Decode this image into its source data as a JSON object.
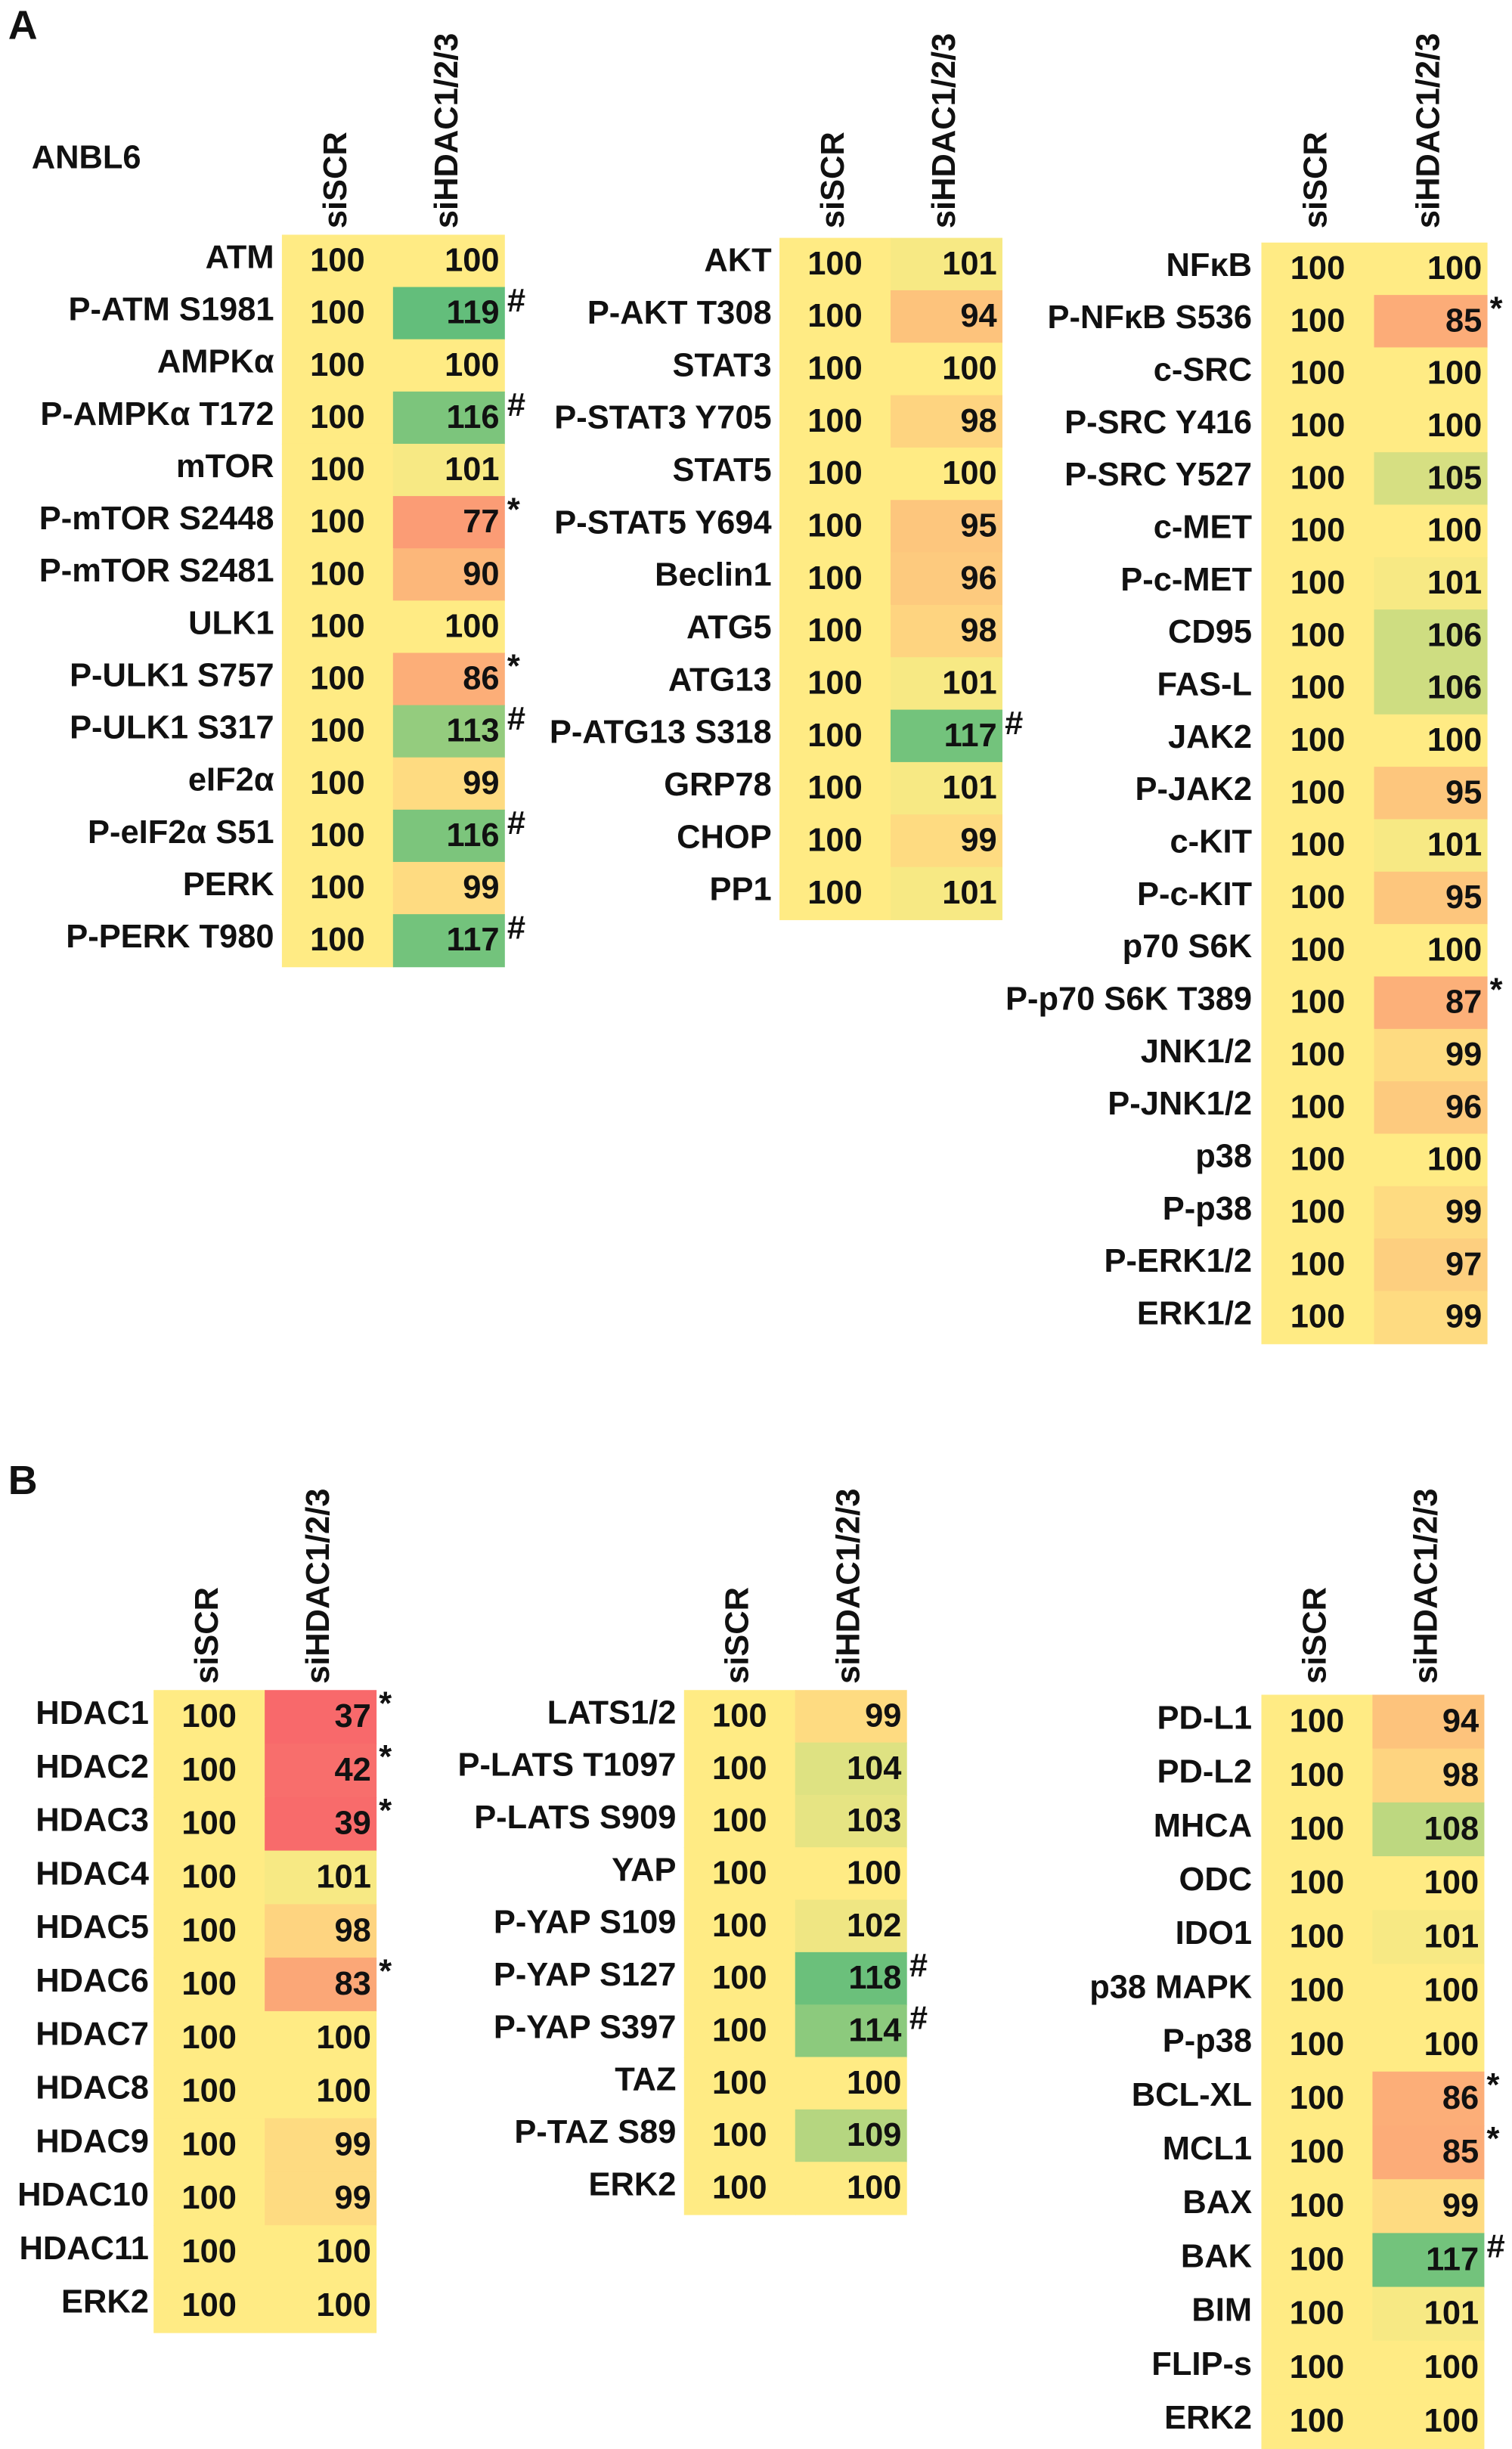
{
  "panel_labels": [
    "A",
    "B"
  ],
  "cell_line": "ANBL6",
  "chart_data": [
    {
      "type": "heatmap",
      "columns": [
        "siSCR",
        "siHDAC1/2/3"
      ],
      "colors": [
        "#f8696b",
        "#ffeb84",
        "#63be7b"
      ],
      "rows": [
        "ATM",
        "P-ATM S1981",
        "AMPKα",
        "P-AMPKα T172",
        "mTOR",
        "P-mTOR S2448",
        "P-mTOR S2481",
        "ULK1",
        "P-ULK1 S757",
        "P-ULK1 S317",
        "eIF2α",
        "P-eIF2α S51",
        "PERK",
        "P-PERK T980"
      ],
      "values": [
        [
          100,
          100
        ],
        [
          100,
          119
        ],
        [
          100,
          100
        ],
        [
          100,
          116
        ],
        [
          100,
          101
        ],
        [
          100,
          77
        ],
        [
          100,
          90
        ],
        [
          100,
          100
        ],
        [
          100,
          86
        ],
        [
          100,
          113
        ],
        [
          100,
          99
        ],
        [
          100,
          116
        ],
        [
          100,
          99
        ],
        [
          100,
          117
        ]
      ],
      "annotations": [
        null,
        "#",
        null,
        "#",
        null,
        "*",
        null,
        null,
        "*",
        "#",
        null,
        "#",
        null,
        "#"
      ]
    },
    {
      "type": "heatmap",
      "columns": [
        "siSCR",
        "siHDAC1/2/3"
      ],
      "colors": [
        "#f8696b",
        "#ffeb84",
        "#63be7b"
      ],
      "rows": [
        "AKT",
        "P-AKT T308",
        "STAT3",
        "P-STAT3 Y705",
        "STAT5",
        "P-STAT5 Y694",
        "Beclin1",
        "ATG5",
        "ATG13",
        "P-ATG13 S318",
        "GRP78",
        "CHOP",
        "PP1"
      ],
      "values": [
        [
          100,
          101
        ],
        [
          100,
          94
        ],
        [
          100,
          100
        ],
        [
          100,
          98
        ],
        [
          100,
          100
        ],
        [
          100,
          95
        ],
        [
          100,
          96
        ],
        [
          100,
          98
        ],
        [
          100,
          101
        ],
        [
          100,
          117
        ],
        [
          100,
          101
        ],
        [
          100,
          99
        ],
        [
          100,
          101
        ]
      ],
      "annotations": [
        null,
        null,
        null,
        null,
        null,
        null,
        null,
        null,
        null,
        "#",
        null,
        null,
        null
      ]
    },
    {
      "type": "heatmap",
      "columns": [
        "siSCR",
        "siHDAC1/2/3"
      ],
      "colors": [
        "#f8696b",
        "#ffeb84",
        "#63be7b"
      ],
      "rows": [
        "NFκB",
        "P-NFκB S536",
        "c-SRC",
        "P-SRC Y416",
        "P-SRC Y527",
        "c-MET",
        "P-c-MET",
        "CD95",
        "FAS-L",
        "JAK2",
        "P-JAK2",
        "c-KIT",
        "P-c-KIT",
        "p70 S6K",
        "P-p70 S6K T389",
        "JNK1/2",
        "P-JNK1/2",
        "p38",
        "P-p38",
        "P-ERK1/2",
        "ERK1/2"
      ],
      "values": [
        [
          100,
          100
        ],
        [
          100,
          85
        ],
        [
          100,
          100
        ],
        [
          100,
          100
        ],
        [
          100,
          105
        ],
        [
          100,
          100
        ],
        [
          100,
          101
        ],
        [
          100,
          106
        ],
        [
          100,
          106
        ],
        [
          100,
          100
        ],
        [
          100,
          95
        ],
        [
          100,
          101
        ],
        [
          100,
          95
        ],
        [
          100,
          100
        ],
        [
          100,
          87
        ],
        [
          100,
          99
        ],
        [
          100,
          96
        ],
        [
          100,
          100
        ],
        [
          100,
          99
        ],
        [
          100,
          97
        ],
        [
          100,
          99
        ]
      ],
      "annotations": [
        null,
        "*",
        null,
        null,
        null,
        null,
        null,
        null,
        null,
        null,
        null,
        null,
        null,
        null,
        "*",
        null,
        null,
        null,
        null,
        null,
        null
      ]
    },
    {
      "type": "heatmap",
      "columns": [
        "siSCR",
        "siHDAC1/2/3"
      ],
      "colors": [
        "#f8696b",
        "#ffeb84",
        "#63be7b"
      ],
      "rows": [
        "HDAC1",
        "HDAC2",
        "HDAC3",
        "HDAC4",
        "HDAC5",
        "HDAC6",
        "HDAC7",
        "HDAC8",
        "HDAC9",
        "HDAC10",
        "HDAC11",
        "ERK2"
      ],
      "values": [
        [
          100,
          37
        ],
        [
          100,
          42
        ],
        [
          100,
          39
        ],
        [
          100,
          101
        ],
        [
          100,
          98
        ],
        [
          100,
          83
        ],
        [
          100,
          100
        ],
        [
          100,
          100
        ],
        [
          100,
          99
        ],
        [
          100,
          99
        ],
        [
          100,
          100
        ],
        [
          100,
          100
        ]
      ],
      "annotations": [
        "*",
        "*",
        "*",
        null,
        null,
        "*",
        null,
        null,
        null,
        null,
        null,
        null
      ]
    },
    {
      "type": "heatmap",
      "columns": [
        "siSCR",
        "siHDAC1/2/3"
      ],
      "colors": [
        "#f8696b",
        "#ffeb84",
        "#63be7b"
      ],
      "rows": [
        "LATS1/2",
        "P-LATS T1097",
        "P-LATS S909",
        "YAP",
        "P-YAP S109",
        "P-YAP S127",
        "P-YAP S397",
        "TAZ",
        "P-TAZ S89",
        "ERK2"
      ],
      "values": [
        [
          100,
          99
        ],
        [
          100,
          104
        ],
        [
          100,
          103
        ],
        [
          100,
          100
        ],
        [
          100,
          102
        ],
        [
          100,
          118
        ],
        [
          100,
          114
        ],
        [
          100,
          100
        ],
        [
          100,
          109
        ],
        [
          100,
          100
        ]
      ],
      "annotations": [
        null,
        null,
        null,
        null,
        null,
        "#",
        "#",
        null,
        null,
        null
      ]
    },
    {
      "type": "heatmap",
      "columns": [
        "siSCR",
        "siHDAC1/2/3"
      ],
      "colors": [
        "#f8696b",
        "#ffeb84",
        "#63be7b"
      ],
      "rows": [
        "PD-L1",
        "PD-L2",
        "MHCA",
        "ODC",
        "IDO1",
        "p38 MAPK",
        "P-p38",
        "BCL-XL",
        "MCL1",
        "BAX",
        "BAK",
        "BIM",
        "FLIP-s",
        "ERK2"
      ],
      "values": [
        [
          100,
          94
        ],
        [
          100,
          98
        ],
        [
          100,
          108
        ],
        [
          100,
          100
        ],
        [
          100,
          101
        ],
        [
          100,
          100
        ],
        [
          100,
          100
        ],
        [
          100,
          86
        ],
        [
          100,
          85
        ],
        [
          100,
          99
        ],
        [
          100,
          117
        ],
        [
          100,
          101
        ],
        [
          100,
          100
        ],
        [
          100,
          100
        ]
      ],
      "annotations": [
        null,
        null,
        null,
        null,
        null,
        null,
        null,
        "*",
        "*",
        null,
        "#",
        null,
        null,
        null
      ]
    }
  ]
}
